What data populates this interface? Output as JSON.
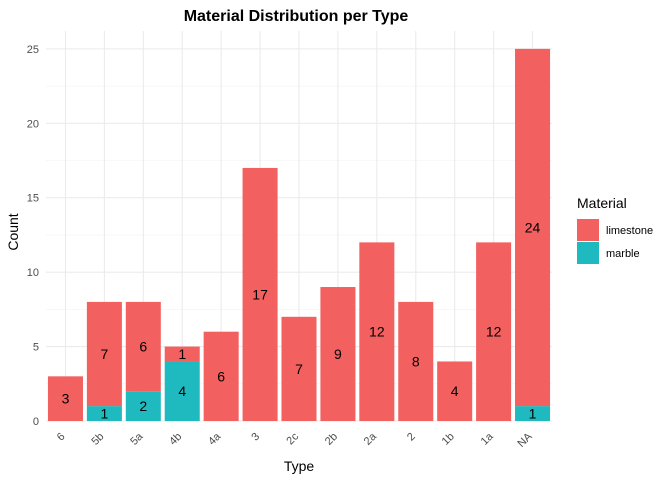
{
  "chart_data": {
    "type": "bar",
    "stacked": true,
    "title": "Material Distribution per Type",
    "xlabel": "Type",
    "ylabel": "Count",
    "ylim": [
      0,
      26.2
    ],
    "yticks": [
      0,
      5,
      10,
      15,
      20,
      25
    ],
    "grid": true,
    "categories": [
      "6",
      "5b",
      "5a",
      "4b",
      "4a",
      "3",
      "2c",
      "2b",
      "2a",
      "2",
      "1b",
      "1a",
      "NA"
    ],
    "series": [
      {
        "name": "marble",
        "color": "#1fbabf",
        "values": [
          0,
          1,
          2,
          4,
          0,
          0,
          0,
          0,
          0,
          0,
          0,
          0,
          1
        ]
      },
      {
        "name": "limestone",
        "color": "#f26060",
        "values": [
          3,
          7,
          6,
          1,
          6,
          17,
          7,
          9,
          12,
          8,
          4,
          12,
          24
        ]
      }
    ],
    "legend": {
      "title": "Material",
      "position": "right",
      "entries": [
        {
          "label": "limestone",
          "color": "#f26060"
        },
        {
          "label": "marble",
          "color": "#1fbabf"
        }
      ]
    }
  }
}
